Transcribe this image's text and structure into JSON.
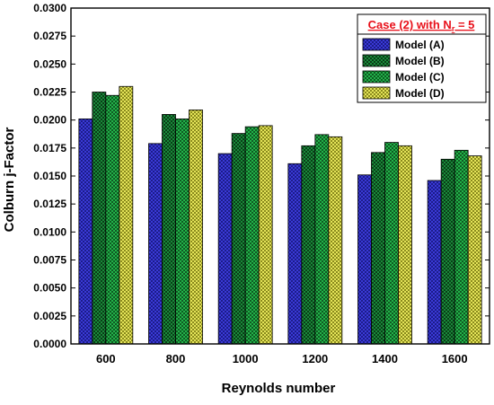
{
  "chart_data": {
    "type": "bar",
    "title": "",
    "xlabel": "Reynolds number",
    "ylabel": "Colburn j-Factor",
    "categories": [
      "600",
      "800",
      "1000",
      "1200",
      "1400",
      "1600"
    ],
    "ylim": [
      0,
      0.03
    ],
    "yticks": [
      "0.0000",
      "0.0025",
      "0.0050",
      "0.0075",
      "0.0100",
      "0.0125",
      "0.0150",
      "0.0175",
      "0.0200",
      "0.0225",
      "0.0250",
      "0.0275",
      "0.0300"
    ],
    "grid": false,
    "legend_position": "top-right",
    "legend_title": "Case (2) with N",
    "legend_title_sub": "r",
    "legend_title_suffix": " = 5",
    "legend_title_color": "#e8101a",
    "series": [
      {
        "name": "Model (A)",
        "color": "#3a3ad6",
        "values": [
          0.0201,
          0.0179,
          0.017,
          0.0161,
          0.0151,
          0.0146
        ]
      },
      {
        "name": "Model (B)",
        "color": "#1a8a3a",
        "values": [
          0.0225,
          0.0205,
          0.0188,
          0.0177,
          0.0171,
          0.0165
        ]
      },
      {
        "name": "Model (C)",
        "color": "#22b24a",
        "values": [
          0.0222,
          0.0201,
          0.0194,
          0.0187,
          0.018,
          0.0173
        ]
      },
      {
        "name": "Model (D)",
        "color": "#d8d84a",
        "values": [
          0.023,
          0.0209,
          0.0195,
          0.0185,
          0.0177,
          0.0168
        ]
      }
    ]
  }
}
